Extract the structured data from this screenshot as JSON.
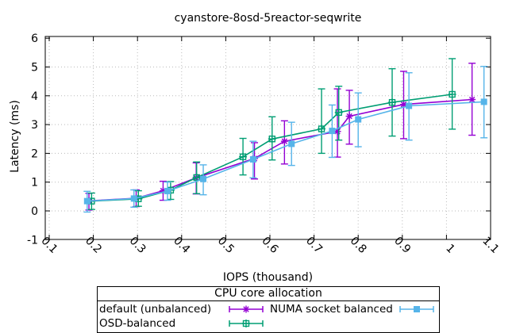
{
  "chart_data": {
    "type": "line",
    "title": "cyanstore-8osd-5reactor-seqwrite",
    "xlabel": "IOPS (thousand)",
    "ylabel": "Latency (ms)",
    "xlim": [
      0.091,
      1.1
    ],
    "ylim": [
      -1,
      6
    ],
    "grid": true,
    "errorbars": true,
    "xticks": {
      "values": [
        0.1,
        0.2,
        0.3,
        0.4,
        0.5,
        0.6,
        0.7,
        0.8,
        0.9,
        1.0,
        1.1
      ],
      "labels": [
        "0.1",
        "0.2",
        "0.3",
        "0.4",
        "0.5",
        "0.6",
        "0.7",
        "0.8",
        "0.9",
        "1",
        "1.1"
      ]
    },
    "yticks": {
      "values": [
        -1,
        0,
        1,
        2,
        3,
        4,
        5,
        6
      ],
      "labels": [
        "-1",
        "0",
        "1",
        "2",
        "3",
        "4",
        "5",
        "6"
      ]
    },
    "legend": {
      "title": "CPU core allocation",
      "position": "bottom-center"
    },
    "colors": {
      "default_unbalanced": "#9400d3",
      "numa_socket_balanced": "#56b4e9",
      "osd_balanced": "#009e73",
      "grid": "#bbbbbb",
      "axis": "#000000"
    },
    "series": [
      {
        "name": "default (unbalanced)",
        "color": "#9400d3",
        "marker": "asterisk",
        "points": [
          [
            0.19,
            0.35,
            0.03,
            0.61
          ],
          [
            0.297,
            0.44,
            0.15,
            0.73
          ],
          [
            0.358,
            0.7,
            0.37,
            1.03
          ],
          [
            0.433,
            1.15,
            0.59,
            1.67
          ],
          [
            0.565,
            1.82,
            1.11,
            2.37
          ],
          [
            0.633,
            2.42,
            1.63,
            3.13
          ],
          [
            0.753,
            2.76,
            1.87,
            4.24
          ],
          [
            0.78,
            3.29,
            2.32,
            4.19
          ],
          [
            0.903,
            3.7,
            2.51,
            4.85
          ],
          [
            1.058,
            3.87,
            2.63,
            5.13
          ]
        ]
      },
      {
        "name": "NUMA socket balanced",
        "color": "#56b4e9",
        "marker": "filled-square",
        "points": [
          [
            0.186,
            0.34,
            -0.04,
            0.68
          ],
          [
            0.292,
            0.43,
            0.13,
            0.73
          ],
          [
            0.368,
            0.69,
            0.37,
            1.0
          ],
          [
            0.449,
            1.11,
            0.56,
            1.6
          ],
          [
            0.562,
            1.79,
            1.15,
            2.42
          ],
          [
            0.649,
            2.33,
            1.58,
            3.08
          ],
          [
            0.741,
            2.78,
            1.86,
            3.68
          ],
          [
            0.8,
            3.18,
            2.23,
            4.1
          ],
          [
            0.915,
            3.65,
            2.46,
            4.8
          ],
          [
            1.085,
            3.79,
            2.54,
            5.02
          ]
        ]
      },
      {
        "name": "OSD-balanced",
        "color": "#009e73",
        "marker": "open-square-cross",
        "points": [
          [
            0.196,
            0.34,
            0.05,
            0.62
          ],
          [
            0.302,
            0.42,
            0.16,
            0.7
          ],
          [
            0.375,
            0.72,
            0.4,
            1.02
          ],
          [
            0.434,
            1.16,
            0.6,
            1.7
          ],
          [
            0.539,
            1.88,
            1.25,
            2.52
          ],
          [
            0.605,
            2.5,
            1.77,
            3.27
          ],
          [
            0.717,
            2.85,
            2.0,
            4.24
          ],
          [
            0.756,
            3.42,
            2.46,
            4.33
          ],
          [
            0.877,
            3.77,
            2.6,
            4.94
          ],
          [
            1.013,
            4.05,
            2.84,
            5.29
          ]
        ]
      }
    ]
  }
}
